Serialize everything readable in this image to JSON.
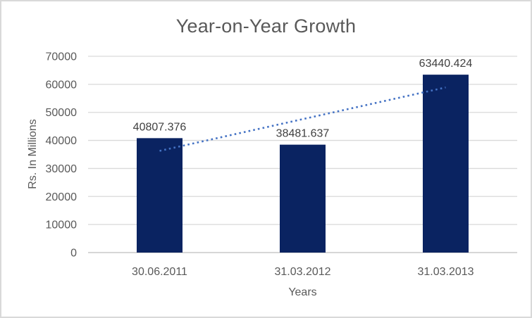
{
  "chart_data": {
    "type": "bar",
    "title": "Year-on-Year Growth",
    "xlabel": "Years",
    "ylabel": "Rs. In Millions",
    "categories": [
      "30.06.2011",
      "31.03.2012",
      "31.03.2013"
    ],
    "values": [
      40807.376,
      38481.637,
      63440.424
    ],
    "data_labels": [
      "40807.376",
      "38481.637",
      "63440.424"
    ],
    "ylim": [
      0,
      70000
    ],
    "ytick_step": 10000,
    "ytick_labels": [
      "0",
      "10000",
      "20000",
      "30000",
      "40000",
      "50000",
      "60000",
      "70000"
    ],
    "grid": true,
    "legend": "none",
    "trendline": {
      "kind": "linear",
      "style": "dotted"
    },
    "colors": {
      "bar": "#0a2361",
      "trendline": "#4472c4",
      "gridline": "#d9d9d9",
      "axis_line": "#c9c9c9",
      "title_text": "#595959",
      "axis_text": "#595959",
      "data_label_text": "#404040",
      "border": "#d9d9d9",
      "background": "#ffffff"
    }
  }
}
